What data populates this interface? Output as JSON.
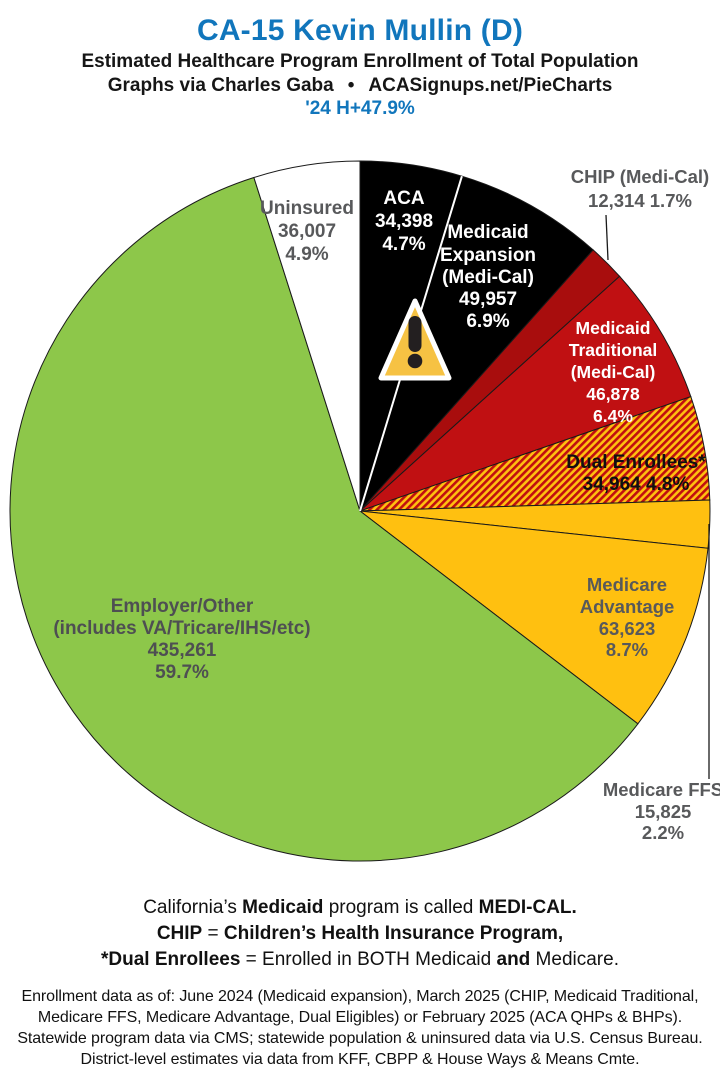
{
  "header": {
    "title": "CA-15 Kevin Mullin (D)",
    "subtitle": "Estimated Healthcare Program Enrollment of Total Population",
    "credit_left": "Graphs via Charles Gaba",
    "credit_bullet": "•",
    "credit_right": "ACASignups.net/PieCharts",
    "performance": "'24 H+47.9%",
    "accent_color": "#1176BC"
  },
  "chart_data": {
    "type": "pie",
    "direction": "clockwise",
    "start_angle_deg": 0,
    "labels_on_slices": true,
    "slices": [
      {
        "id": "aca",
        "label": "ACA",
        "value": 34398,
        "pct": 4.7,
        "color": "#000000",
        "label_color": "#FFFFFF",
        "label_lines": [
          "ACA",
          "34,398",
          "4.7%"
        ]
      },
      {
        "id": "medicaid-expansion",
        "label": "Medicaid Expansion (Medi-Cal)",
        "value": 49957,
        "pct": 6.9,
        "color": "#000000",
        "label_color": "#FFFFFF",
        "label_lines": [
          "Medicaid",
          "Expansion",
          "(Medi-Cal)",
          "49,957",
          "6.9%"
        ]
      },
      {
        "id": "chip",
        "label": "CHIP (Medi-Cal)",
        "value": 12314,
        "pct": 1.7,
        "color": "#A80D0D",
        "label_color": "#58595B",
        "label_outside": true,
        "label_lines": [
          "CHIP (Medi-Cal)",
          "12,314 1.7%"
        ]
      },
      {
        "id": "medicaid-traditional",
        "label": "Medicaid Traditional (Medi-Cal)",
        "value": 46878,
        "pct": 6.4,
        "color": "#C01012",
        "label_color": "#FFFFFF",
        "label_lines": [
          "Medicaid",
          "Traditional",
          "(Medi-Cal)",
          "46,878",
          "6.4%"
        ]
      },
      {
        "id": "dual-enrollees",
        "label": "Dual Enrollees*",
        "value": 34964,
        "pct": 4.8,
        "color": "hatch",
        "hatch_colors": [
          "#C00F0F",
          "#FFC010"
        ],
        "label_color": "#101010",
        "label_lines": [
          "Dual Enrollees*",
          "34,964 4.8%"
        ]
      },
      {
        "id": "medicare-ffs",
        "label": "Medicare FFS",
        "value": 15825,
        "pct": 2.2,
        "color": "#FFC010",
        "label_color": "#58595B",
        "label_outside": true,
        "label_lines": [
          "Medicare FFS",
          "15,825",
          "2.2%"
        ]
      },
      {
        "id": "medicare-advantage",
        "label": "Medicare Advantage",
        "value": 63623,
        "pct": 8.7,
        "color": "#FFC010",
        "label_color": "#58595B",
        "label_lines": [
          "Medicare",
          "Advantage",
          "63,623",
          "8.7%"
        ]
      },
      {
        "id": "employer-other",
        "label": "Employer/Other (includes VA/Tricare/IHS/etc)",
        "value": 435261,
        "pct": 59.7,
        "color": "#8DC74A",
        "label_color": "#4E4F52",
        "label_lines": [
          "Employer/Other",
          "(includes VA/Tricare/IHS/etc)",
          "435,261",
          "59.7%"
        ]
      },
      {
        "id": "uninsured",
        "label": "Uninsured",
        "value": 36007,
        "pct": 4.9,
        "color": "#FFFFFF",
        "label_color": "#58595B",
        "label_lines": [
          "Uninsured",
          "36,007",
          "4.9%"
        ]
      }
    ]
  },
  "warning_icon": {
    "name": "warning-triangle-icon",
    "fill": "#F6C243",
    "stroke": "#FFFFFF",
    "mark_color": "#231F20"
  },
  "footnotes": {
    "definitions": [
      [
        {
          "t": "California’s ",
          "b": false
        },
        {
          "t": "Medicaid",
          "b": true
        },
        {
          "t": " program is called ",
          "b": false
        },
        {
          "t": "MEDI-CAL.",
          "b": true
        }
      ],
      [
        {
          "t": "CHIP",
          "b": true
        },
        {
          "t": " = ",
          "b": false
        },
        {
          "t": "Children’s Health Insurance Program,",
          "b": true
        }
      ],
      [
        {
          "t": "*Dual Enrollees",
          "b": true
        },
        {
          "t": " = Enrolled in BOTH Medicaid ",
          "b": false
        },
        {
          "t": "and",
          "b": true
        },
        {
          "t": " Medicare.",
          "b": false
        }
      ]
    ],
    "sources": [
      "Enrollment data as of: June 2024 (Medicaid expansion), March 2025 (CHIP, Medicaid Traditional,",
      "Medicare FFS, Medicare Advantage, Dual Eligibles) or February 2025 (ACA QHPs & BHPs).",
      "Statewide program data via CMS; statewide population & uninsured data via U.S. Census Bureau.",
      "District-level estimates via data from KFF, CBPP & House Ways & Means Cmte."
    ]
  }
}
